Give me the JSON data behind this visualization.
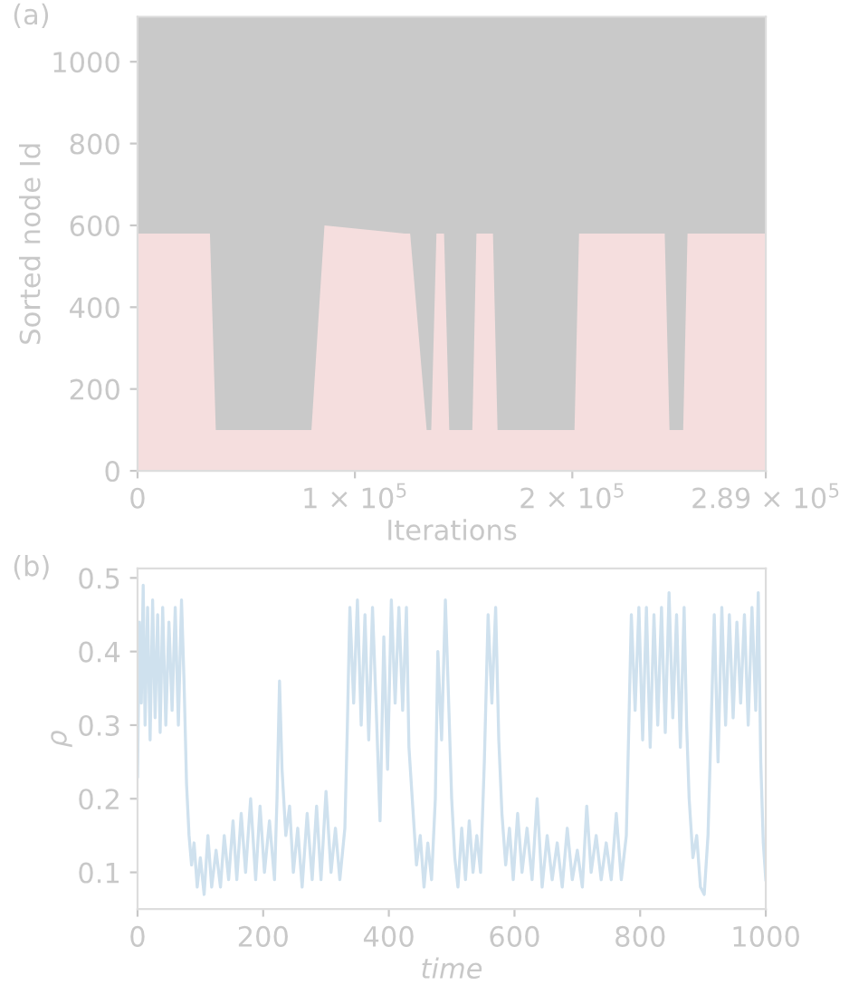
{
  "chart_data": [
    {
      "type": "area",
      "xlabel": "Iterations",
      "ylabel": "Sorted node Id",
      "annotations": [
        "(a)"
      ],
      "x": [
        0,
        33300,
        36000,
        80000,
        83800,
        86000,
        123000,
        125400,
        133000,
        135100,
        137500,
        141000,
        143400,
        154000,
        155900,
        158500,
        163500,
        165600,
        201000,
        203100,
        205500,
        242500,
        244700,
        251000,
        253000,
        255500,
        289000
      ],
      "series": [
        {
          "color": "#f5dede",
          "values": [
            580,
            580,
            100,
            100,
            420,
            600,
            580,
            580,
            100,
            100,
            580,
            580,
            100,
            100,
            580,
            580,
            580,
            100,
            100,
            580,
            580,
            580,
            100,
            100,
            580,
            580,
            580
          ]
        }
      ],
      "xlim": [
        0,
        289000
      ],
      "ylim": [
        0,
        1110
      ],
      "xticks": [
        0,
        {
          "value": 100000,
          "label": "1 × 10$^{5}$"
        },
        {
          "value": 200000,
          "label": "2 × 10$^{5}$"
        },
        {
          "value": 289000,
          "label": "2.89 × 10$^{5}$"
        }
      ],
      "yticks": [
        0,
        200,
        400,
        600,
        800,
        1000
      ],
      "grid": false,
      "legend": false
    },
    {
      "type": "line",
      "xlabel": "time",
      "ylabel": "ρ",
      "annotations": [
        "(b)"
      ],
      "x": [
        0,
        3,
        6,
        9,
        12,
        16,
        20,
        24,
        28,
        32,
        36,
        40,
        45,
        50,
        55,
        60,
        65,
        70,
        74,
        78,
        82,
        86,
        90,
        95,
        100,
        106,
        112,
        118,
        125,
        132,
        138,
        145,
        152,
        158,
        165,
        172,
        180,
        188,
        195,
        202,
        210,
        218,
        222,
        226,
        230,
        236,
        242,
        248,
        255,
        262,
        270,
        278,
        285,
        292,
        300,
        308,
        315,
        322,
        330,
        334,
        338,
        344,
        350,
        356,
        362,
        368,
        374,
        380,
        386,
        392,
        398,
        404,
        410,
        416,
        422,
        428,
        432,
        438,
        444,
        450,
        456,
        462,
        468,
        474,
        478,
        484,
        490,
        496,
        500,
        505,
        510,
        516,
        522,
        528,
        534,
        540,
        546,
        552,
        558,
        564,
        570,
        575,
        580,
        586,
        592,
        598,
        605,
        612,
        620,
        628,
        636,
        644,
        652,
        660,
        668,
        676,
        684,
        692,
        700,
        708,
        715,
        722,
        730,
        738,
        746,
        754,
        762,
        770,
        778,
        782,
        786,
        792,
        798,
        804,
        810,
        816,
        822,
        828,
        834,
        840,
        846,
        852,
        858,
        864,
        870,
        874,
        878,
        884,
        890,
        896,
        902,
        908,
        913,
        918,
        924,
        930,
        936,
        942,
        948,
        954,
        960,
        966,
        972,
        978,
        984,
        988,
        992,
        996,
        1000
      ],
      "series": [
        {
          "color": "#cfe1ee",
          "values": [
            0.23,
            0.44,
            0.33,
            0.49,
            0.3,
            0.46,
            0.28,
            0.47,
            0.31,
            0.45,
            0.29,
            0.46,
            0.3,
            0.44,
            0.32,
            0.46,
            0.3,
            0.47,
            0.36,
            0.22,
            0.15,
            0.11,
            0.14,
            0.08,
            0.12,
            0.07,
            0.15,
            0.08,
            0.13,
            0.08,
            0.15,
            0.09,
            0.17,
            0.09,
            0.18,
            0.1,
            0.2,
            0.09,
            0.19,
            0.1,
            0.17,
            0.09,
            0.2,
            0.36,
            0.24,
            0.15,
            0.19,
            0.1,
            0.16,
            0.08,
            0.18,
            0.09,
            0.19,
            0.09,
            0.21,
            0.1,
            0.16,
            0.09,
            0.16,
            0.3,
            0.46,
            0.33,
            0.47,
            0.3,
            0.45,
            0.28,
            0.46,
            0.32,
            0.17,
            0.42,
            0.24,
            0.47,
            0.33,
            0.46,
            0.32,
            0.46,
            0.27,
            0.19,
            0.11,
            0.15,
            0.08,
            0.14,
            0.09,
            0.2,
            0.4,
            0.28,
            0.47,
            0.31,
            0.2,
            0.12,
            0.08,
            0.16,
            0.09,
            0.17,
            0.1,
            0.15,
            0.1,
            0.25,
            0.45,
            0.33,
            0.46,
            0.28,
            0.18,
            0.11,
            0.16,
            0.09,
            0.18,
            0.1,
            0.16,
            0.09,
            0.2,
            0.08,
            0.15,
            0.09,
            0.14,
            0.08,
            0.16,
            0.09,
            0.13,
            0.08,
            0.19,
            0.1,
            0.15,
            0.09,
            0.14,
            0.09,
            0.18,
            0.09,
            0.15,
            0.3,
            0.45,
            0.32,
            0.46,
            0.28,
            0.46,
            0.27,
            0.45,
            0.3,
            0.46,
            0.29,
            0.48,
            0.31,
            0.45,
            0.27,
            0.46,
            0.3,
            0.2,
            0.12,
            0.15,
            0.08,
            0.07,
            0.15,
            0.3,
            0.45,
            0.25,
            0.46,
            0.3,
            0.45,
            0.31,
            0.44,
            0.33,
            0.45,
            0.3,
            0.46,
            0.32,
            0.48,
            0.25,
            0.14,
            0.09
          ]
        }
      ],
      "xlim": [
        0,
        1000
      ],
      "ylim": [
        0.05,
        0.513
      ],
      "xticks": [
        0,
        200,
        400,
        600,
        800,
        1000
      ],
      "yticks": [
        0.1,
        0.2,
        0.3,
        0.4,
        0.5
      ],
      "grid": false,
      "legend": false,
      "line_style": "solid",
      "marker": "none"
    }
  ]
}
